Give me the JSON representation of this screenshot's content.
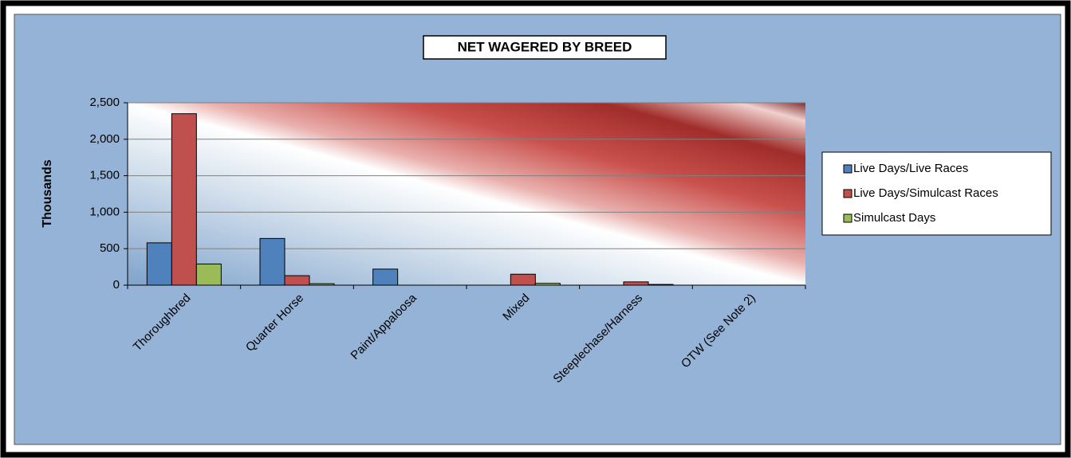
{
  "chart_data": {
    "type": "bar",
    "title": "NET WAGERED BY BREED",
    "y_label": "Thousands",
    "categories": [
      "Thoroughbred",
      "Quarter Horse",
      "Paint/Appaloosa",
      "Mixed",
      "Steeplechase/Harness",
      "OTW (See Note 2)"
    ],
    "series": [
      {
        "name": "Live Days/Live Races",
        "color": "#4f81bd",
        "values": [
          580,
          640,
          220,
          0,
          0,
          0
        ]
      },
      {
        "name": "Live Days/Simulcast Races",
        "color": "#c0504d",
        "values": [
          2350,
          130,
          0,
          150,
          45,
          0
        ]
      },
      {
        "name": "Simulcast Days",
        "color": "#9bbb59",
        "values": [
          290,
          20,
          0,
          25,
          10,
          0
        ]
      }
    ],
    "ylim": [
      0,
      2500
    ],
    "yticks": [
      0,
      500,
      {
        "value": 1000,
        "label": "1,000"
      },
      {
        "value": 1500,
        "label": "1,500"
      },
      {
        "value": 2000,
        "label": "2,000"
      },
      {
        "value": 2500,
        "label": "2,500"
      }
    ],
    "grid": true,
    "legend": "right"
  }
}
